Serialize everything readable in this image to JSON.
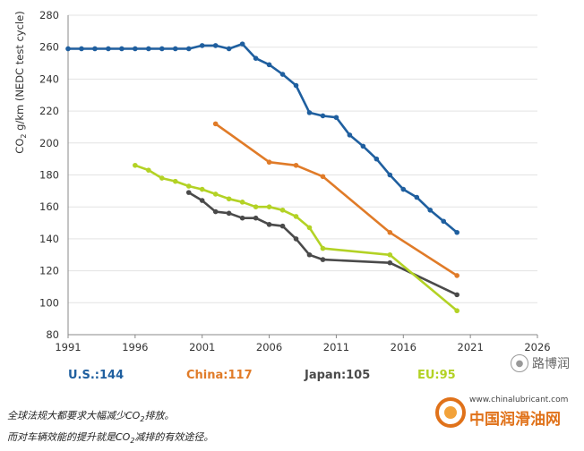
{
  "chart_data": {
    "type": "line",
    "title": "",
    "xlabel": "",
    "ylabel_main": "CO",
    "ylabel_sub": "2",
    "ylabel_rest": " g/km (NEDC test cycle)",
    "xlim": [
      1991,
      2026
    ],
    "ylim": [
      80,
      280
    ],
    "x_ticks": [
      "1991",
      "1996",
      "2001",
      "2006",
      "2011",
      "2016",
      "2021",
      "2026"
    ],
    "y_ticks": [
      "80",
      "100",
      "120",
      "140",
      "160",
      "180",
      "200",
      "220",
      "240",
      "260",
      "280"
    ],
    "grid": "horizontal",
    "series": [
      {
        "name": "U.S.",
        "color": "#1f5f9f",
        "x": [
          1991,
          1992,
          1993,
          1994,
          1995,
          1996,
          1997,
          1998,
          1999,
          2000,
          2001,
          2002,
          2003,
          2004,
          2005,
          2006,
          2007,
          2008,
          2009,
          2010,
          2011,
          2012,
          2013,
          2014,
          2015,
          2016,
          2017,
          2018,
          2019,
          2020
        ],
        "y": [
          259,
          259,
          259,
          259,
          259,
          259,
          259,
          259,
          259,
          259,
          261,
          261,
          259,
          262,
          253,
          249,
          243,
          236,
          219,
          217,
          216,
          205,
          198,
          190,
          180,
          171,
          166,
          158,
          151,
          144
        ]
      },
      {
        "name": "China",
        "color": "#e07b28",
        "x": [
          2002,
          2006,
          2008,
          2010,
          2015,
          2020
        ],
        "y": [
          212,
          188,
          186,
          179,
          144,
          117
        ]
      },
      {
        "name": "Japan",
        "color": "#4a4a4a",
        "x": [
          2000,
          2001,
          2002,
          2003,
          2004,
          2005,
          2006,
          2007,
          2008,
          2009,
          2010,
          2015,
          2020
        ],
        "y": [
          169,
          164,
          157,
          156,
          153,
          153,
          149,
          148,
          140,
          130,
          127,
          125,
          105
        ]
      },
      {
        "name": "EU",
        "color": "#b3d225",
        "x": [
          1996,
          1997,
          1998,
          1999,
          2000,
          2001,
          2002,
          2003,
          2004,
          2005,
          2006,
          2007,
          2008,
          2009,
          2010,
          2015,
          2020
        ],
        "y": [
          186,
          183,
          178,
          176,
          173,
          171,
          168,
          165,
          163,
          160,
          160,
          158,
          154,
          147,
          134,
          130,
          95
        ]
      }
    ],
    "legend": [
      {
        "label": "U.S.:144",
        "color": "#1f5f9f"
      },
      {
        "label": "China:117",
        "color": "#e07b28"
      },
      {
        "label": "Japan:105",
        "color": "#4a4a4a"
      },
      {
        "label": "EU:95",
        "color": "#b3d225"
      }
    ]
  },
  "captions": {
    "line1_a": "全球法规大都要求大幅减少CO",
    "line1_sub": "2",
    "line1_b": "排放。",
    "line2_a": "而对车辆效能的提升就是CO",
    "line2_sub": "2",
    "line2_b": "减排的有效途径。"
  },
  "watermark": {
    "icon": "wechat-icon",
    "text": "路博润"
  },
  "logo": {
    "url": "www.chinalubricant.com",
    "name": "中国润滑油网"
  }
}
